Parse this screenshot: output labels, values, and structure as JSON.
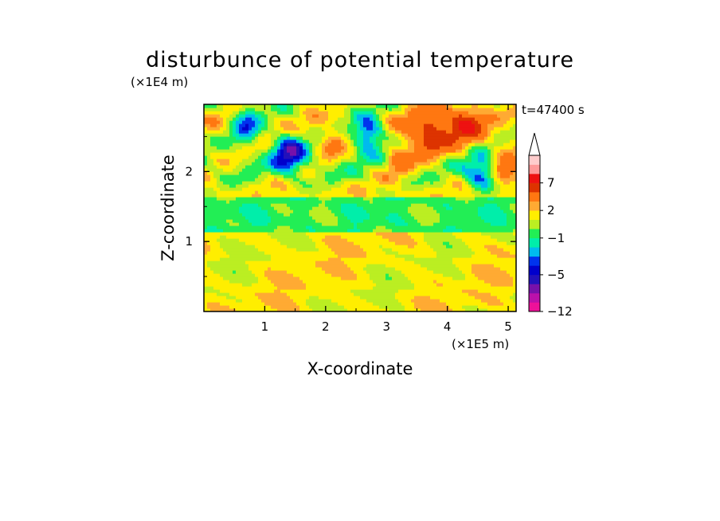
{
  "chart_data": {
    "type": "heatmap",
    "title": "disturbunce of potential temperature",
    "time_label": "t=47400 s",
    "xlabel": "X-coordinate",
    "ylabel": "Z-coordinate",
    "x_unit": "(×1E5 m)",
    "y_unit": "(×1E4 m)",
    "xlim": [
      0,
      5.13
    ],
    "ylim": [
      0,
      2.96
    ],
    "x_ticks": [
      "1",
      "2",
      "3",
      "4",
      "5"
    ],
    "y_ticks": [
      "1",
      "2"
    ],
    "x_tick_values": [
      1,
      2,
      3,
      4,
      5
    ],
    "y_tick_values": [
      1,
      2
    ],
    "colorbar": {
      "tick_labels": [
        "7",
        "2",
        "−1",
        "−5",
        "−12"
      ],
      "tick_values": [
        7,
        2,
        -1,
        -5,
        -12
      ],
      "levels": [
        -12,
        -10,
        -8,
        -6,
        -5,
        -4,
        -3,
        -2,
        -1,
        0,
        1,
        2,
        3,
        5,
        7,
        9,
        11
      ],
      "colors": [
        "#ee1199",
        "#bb11aa",
        "#7711aa",
        "#2211bb",
        "#0000cc",
        "#0033ee",
        "#00bbee",
        "#00eeaa",
        "#22ee55",
        "#bbee22",
        "#ffee00",
        "#ffaa33",
        "#ff7711",
        "#dd3300",
        "#ee1111",
        "#ff9999",
        "#ffcccc"
      ],
      "extend_max": true
    }
  }
}
